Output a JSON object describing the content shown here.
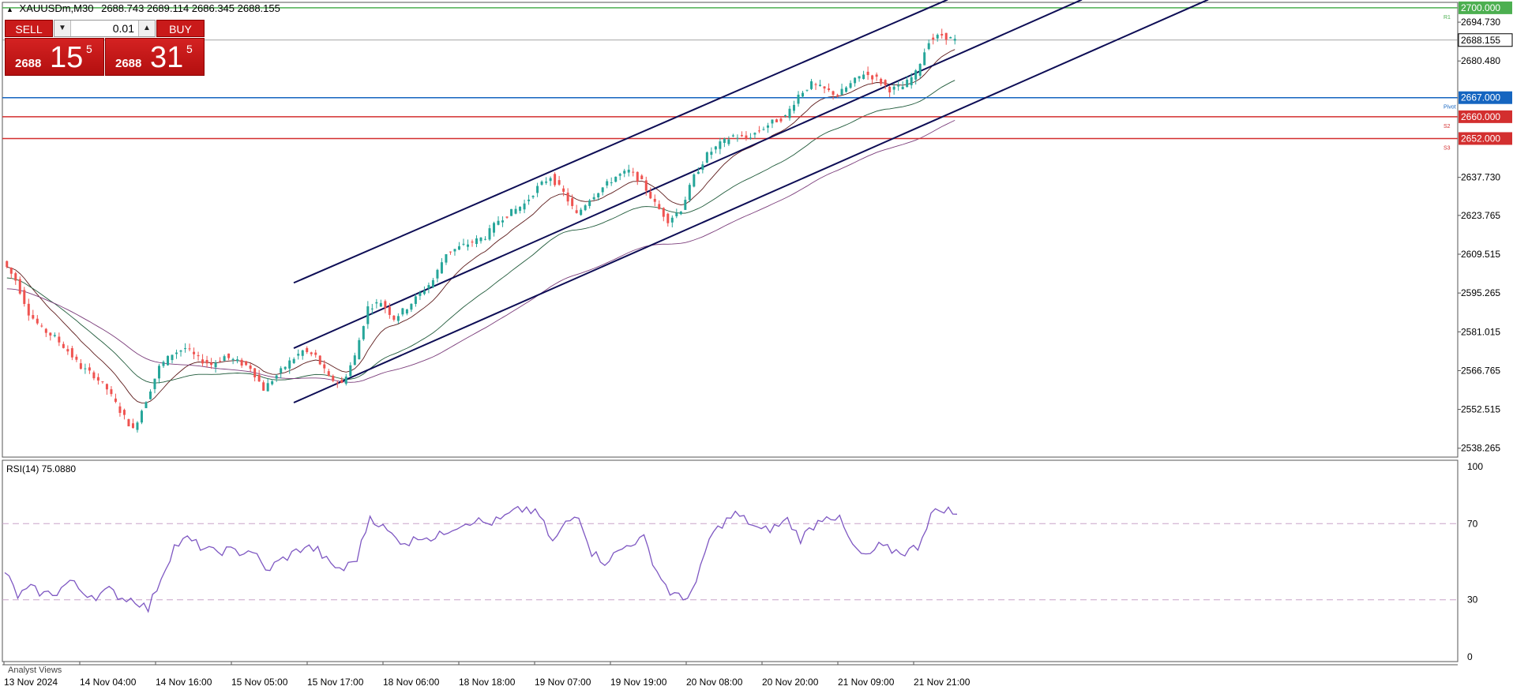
{
  "symbol": {
    "name": "XAUUSDm,M30",
    "ohlc": "2688.743 2689.114 2686.345 2688.155"
  },
  "one_click": {
    "sell_label": "SELL",
    "buy_label": "BUY",
    "lot": "0.01",
    "sell_small": "2688",
    "sell_big": "15",
    "sell_sup": "5",
    "buy_small": "2688",
    "buy_big": "31",
    "buy_sup": "5"
  },
  "rsi_label": "RSI(14) 75.0880",
  "analyst_label": "Analyst Views",
  "colors": {
    "bull": "#26a69a",
    "bear": "#ef5350",
    "channel": "#0d0d55",
    "pivot": "#1565c0",
    "support": "#d32f2f",
    "resistance": "#4caf50",
    "rsi": "#7e57c2"
  },
  "chart_data": [
    {
      "type": "candlestick",
      "y_ticks": [
        "2694.730",
        "2680.480",
        "2637.730",
        "2623.765",
        "2609.515",
        "2595.265",
        "2581.015",
        "2566.765",
        "2552.515",
        "2538.265"
      ],
      "x_ticks": [
        "13 Nov 2024",
        "14 Nov 04:00",
        "14 Nov 16:00",
        "15 Nov 05:00",
        "15 Nov 17:00",
        "18 Nov 06:00",
        "18 Nov 18:00",
        "19 Nov 07:00",
        "19 Nov 19:00",
        "20 Nov 08:00",
        "20 Nov 20:00",
        "21 Nov 09:00",
        "21 Nov 21:00"
      ],
      "ylim": [
        2535.0,
        2702.0
      ],
      "current_price": "2688.155",
      "levels": [
        {
          "name": "R1",
          "value": 2700.0,
          "label": "2700.000",
          "tag": "R1"
        },
        {
          "name": "Pivot",
          "value": 2667.0,
          "label": "2667.000",
          "tag": "Pivot"
        },
        {
          "name": "S2",
          "value": 2660.0,
          "label": "2660.000",
          "tag": "S2"
        },
        {
          "name": "S3",
          "value": 2652.0,
          "label": "2652.000",
          "tag": "S3"
        }
      ],
      "price_path": [
        2607,
        2600,
        2588,
        2582,
        2579,
        2574,
        2568,
        2565,
        2560,
        2552,
        2545,
        2556,
        2568,
        2573,
        2575,
        2571,
        2569,
        2572,
        2570,
        2568,
        2560,
        2565,
        2570,
        2574,
        2572,
        2564,
        2562,
        2572,
        2590,
        2592,
        2586,
        2590,
        2595,
        2600,
        2610,
        2612,
        2614,
        2616,
        2622,
        2625,
        2628,
        2634,
        2638,
        2632,
        2624,
        2630,
        2634,
        2638,
        2640,
        2636,
        2628,
        2622,
        2626,
        2638,
        2646,
        2650,
        2653,
        2652,
        2655,
        2658,
        2660,
        2668,
        2672,
        2670,
        2668,
        2672,
        2676,
        2674,
        2670,
        2671,
        2676,
        2688,
        2690,
        2688
      ]
    },
    {
      "type": "line",
      "title": "RSI(14) 75.0880",
      "y_ticks": [
        "100",
        "70",
        "30",
        "0"
      ],
      "levels": [
        70,
        30
      ],
      "ylim": [
        0,
        100
      ],
      "values": [
        45,
        32,
        36,
        33,
        34,
        40,
        34,
        32,
        35,
        31,
        30,
        25,
        42,
        58,
        62,
        58,
        55,
        56,
        55,
        56,
        45,
        50,
        54,
        58,
        56,
        48,
        46,
        52,
        74,
        68,
        62,
        60,
        64,
        62,
        67,
        70,
        72,
        70,
        72,
        76,
        78,
        74,
        60,
        70,
        75,
        55,
        50,
        55,
        60,
        62,
        45,
        34,
        30,
        38,
        62,
        70,
        75,
        71,
        66,
        68,
        72,
        62,
        69,
        75,
        72,
        58,
        52,
        58,
        56,
        55,
        58,
        75,
        78,
        75
      ]
    }
  ]
}
